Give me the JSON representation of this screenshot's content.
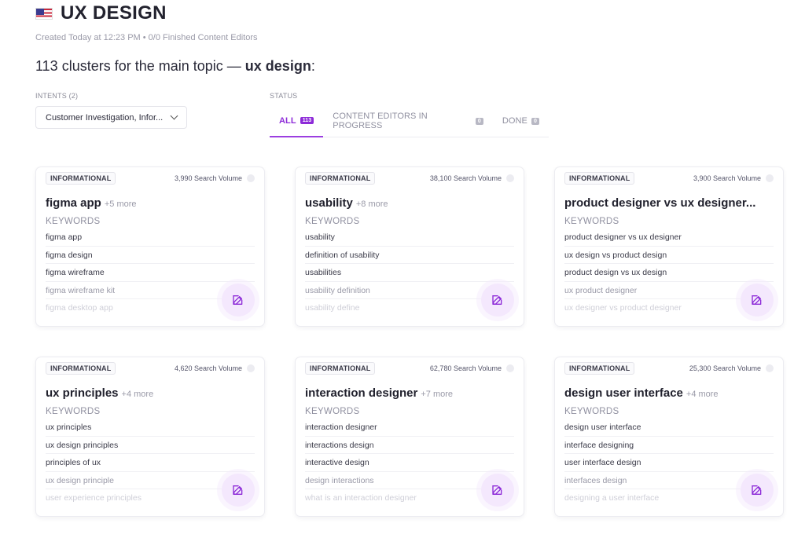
{
  "header": {
    "title": "UX DESIGN",
    "meta": "Created Today at 12:23 PM • 0/0 Finished Content Editors"
  },
  "summary": {
    "prefix": "113 clusters for the main topic — ",
    "topic": "ux design",
    "suffix": ":"
  },
  "intents": {
    "label": "INTENTS (2)",
    "value": "Customer Investigation, Infor..."
  },
  "status": {
    "label": "STATUS",
    "tabs": [
      {
        "label": "ALL",
        "count": "113"
      },
      {
        "label": "CONTENT EDITORS IN PROGRESS",
        "count": "0"
      },
      {
        "label": "DONE",
        "count": "0"
      }
    ]
  },
  "cards": [
    {
      "intent": "INFORMATIONAL",
      "volume": "3,990 Search Volume",
      "title": "figma app",
      "more": "+5 more",
      "keywords_label": "KEYWORDS",
      "keywords": [
        "figma app",
        "figma design",
        "figma wireframe",
        "figma wireframe kit",
        "figma desktop app"
      ]
    },
    {
      "intent": "INFORMATIONAL",
      "volume": "38,100 Search Volume",
      "title": "usability",
      "more": "+8 more",
      "keywords_label": "KEYWORDS",
      "keywords": [
        "usability",
        "definition of usability",
        "usabilities",
        "usability definition",
        "usability define"
      ]
    },
    {
      "intent": "INFORMATIONAL",
      "volume": "3,900 Search Volume",
      "title": "product designer vs ux designer...",
      "more": "",
      "keywords_label": "KEYWORDS",
      "keywords": [
        "product designer vs ux designer",
        "ux design vs product design",
        "product design vs ux design",
        "ux product designer",
        "ux designer vs product designer"
      ]
    },
    {
      "intent": "INFORMATIONAL",
      "volume": "4,620 Search Volume",
      "title": "ux principles",
      "more": "+4 more",
      "keywords_label": "KEYWORDS",
      "keywords": [
        "ux principles",
        "ux design principles",
        "principles of ux",
        "ux design principle",
        "user experience principles"
      ]
    },
    {
      "intent": "INFORMATIONAL",
      "volume": "62,780 Search Volume",
      "title": "interaction designer",
      "more": "+7 more",
      "keywords_label": "KEYWORDS",
      "keywords": [
        "interaction designer",
        "interactions design",
        "interactive design",
        "design interactions",
        "what is an interaction designer"
      ]
    },
    {
      "intent": "INFORMATIONAL",
      "volume": "25,300 Search Volume",
      "title": "design user interface",
      "more": "+4 more",
      "keywords_label": "KEYWORDS",
      "keywords": [
        "design user interface",
        "interface designing",
        "user interface design",
        "interfaces design",
        "designing a user interface"
      ]
    }
  ],
  "colors": {
    "accent": "#8d2bd8",
    "accent_soft": "#f4e8fd"
  },
  "icons": {
    "flag": "us-flag-icon",
    "dropdown": "chevron-down-icon",
    "edit": "edit-icon",
    "info": "info-icon"
  }
}
